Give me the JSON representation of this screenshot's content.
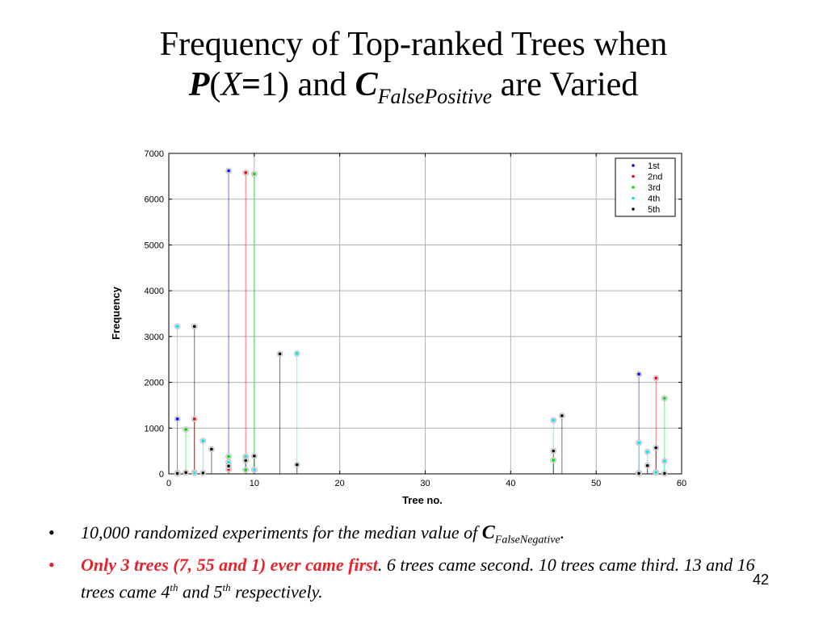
{
  "slide": {
    "title": {
      "line1": "Frequency of Top-ranked Trees when",
      "p": "P",
      "open": "(",
      "x": "X",
      "eq": "=",
      "one_close": "1) and",
      "c": "C",
      "sub": "FalsePositive",
      "end": "are Varied"
    },
    "bullets": [
      {
        "text": "10,000 randomized experiments for the median value of",
        "c": "C",
        "sub": "FalseNegative",
        "tail": "."
      },
      {
        "red": "Only 3 trees (7, 55 and 1) ever came first",
        "red_tail": ".",
        "text1": "6 trees came second. 10 trees came third. 13 and 16 trees came 4",
        "sup1": "th",
        "text2": "and 5",
        "sup2": "th",
        "text3": "respectively."
      }
    ],
    "page_number": "42",
    "bullet_glyph": "•"
  },
  "chart_data": {
    "type": "scatter",
    "xlabel": "Tree no.",
    "ylabel": "Frequency",
    "xlim": [
      0,
      60
    ],
    "ylim": [
      0,
      7000
    ],
    "xticks": [
      0,
      10,
      20,
      30,
      40,
      50,
      60
    ],
    "yticks": [
      0,
      1000,
      2000,
      3000,
      4000,
      5000,
      6000,
      7000
    ],
    "grid": true,
    "legend_position": "top-right",
    "series": [
      {
        "name": "1st",
        "color": "#0000ff",
        "points": [
          [
            1,
            1200
          ],
          [
            7,
            6620
          ],
          [
            55,
            2180
          ]
        ]
      },
      {
        "name": "2nd",
        "color": "#ff0000",
        "points": [
          [
            1,
            10
          ],
          [
            3,
            1200
          ],
          [
            7,
            100
          ],
          [
            9,
            6580
          ],
          [
            57,
            2090
          ],
          [
            55,
            10
          ]
        ]
      },
      {
        "name": "3rd",
        "color": "#00e000",
        "points": [
          [
            1,
            20
          ],
          [
            2,
            970
          ],
          [
            3,
            30
          ],
          [
            7,
            380
          ],
          [
            9,
            90
          ],
          [
            10,
            6550
          ],
          [
            45,
            300
          ],
          [
            55,
            20
          ],
          [
            57,
            30
          ],
          [
            58,
            1650
          ]
        ]
      },
      {
        "name": "4th",
        "color": "#00e5ff",
        "points": [
          [
            1,
            3220
          ],
          [
            2,
            30
          ],
          [
            4,
            720
          ],
          [
            7,
            250
          ],
          [
            9,
            380
          ],
          [
            10,
            90
          ],
          [
            15,
            2630
          ],
          [
            45,
            1170
          ],
          [
            55,
            680
          ],
          [
            56,
            480
          ],
          [
            57,
            30
          ],
          [
            58,
            280
          ],
          [
            3,
            20
          ]
        ]
      },
      {
        "name": "5th",
        "color": "#000000",
        "points": [
          [
            1,
            10
          ],
          [
            2,
            30
          ],
          [
            3,
            3220
          ],
          [
            4,
            20
          ],
          [
            5,
            540
          ],
          [
            7,
            170
          ],
          [
            9,
            290
          ],
          [
            10,
            390
          ],
          [
            13,
            2620
          ],
          [
            15,
            200
          ],
          [
            45,
            500
          ],
          [
            46,
            1270
          ],
          [
            55,
            10
          ],
          [
            56,
            180
          ],
          [
            57,
            570
          ],
          [
            58,
            10
          ]
        ]
      }
    ]
  }
}
